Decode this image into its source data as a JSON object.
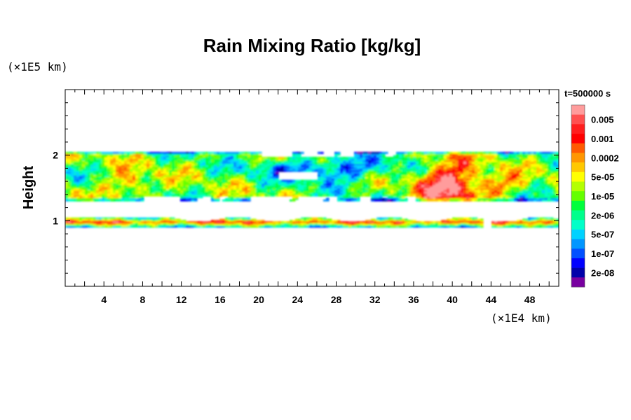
{
  "chart_data": {
    "type": "heatmap",
    "title": "Rain Mixing Ratio [kg/kg]",
    "ylabel": "Height",
    "y_unit": "(×1E5 km)",
    "x_unit": "(×1E4 km)",
    "time_label": "t=500000 s",
    "xlim": [
      0,
      51
    ],
    "ylim": [
      0,
      3
    ],
    "x_ticks": [
      4,
      8,
      12,
      16,
      20,
      24,
      28,
      32,
      36,
      40,
      44,
      48
    ],
    "y_ticks": [
      1,
      2
    ],
    "color_levels": [
      {
        "label": "",
        "color": "#ff9c9c"
      },
      {
        "label": "0.005",
        "color": "#ff5050"
      },
      {
        "label": "",
        "color": "#ff1e1e"
      },
      {
        "label": "0.001",
        "color": "#ff0000"
      },
      {
        "label": "",
        "color": "#ff5a00"
      },
      {
        "label": "0.0002",
        "color": "#ff9600"
      },
      {
        "label": "",
        "color": "#ffc800"
      },
      {
        "label": "5e-05",
        "color": "#ffff00"
      },
      {
        "label": "",
        "color": "#b4ff00"
      },
      {
        "label": "1e-05",
        "color": "#64ff00"
      },
      {
        "label": "",
        "color": "#00ff3c"
      },
      {
        "label": "2e-06",
        "color": "#00ff8c"
      },
      {
        "label": "",
        "color": "#00ffc8"
      },
      {
        "label": "5e-07",
        "color": "#00d2ff"
      },
      {
        "label": "",
        "color": "#0096ff"
      },
      {
        "label": "1e-07",
        "color": "#0050ff"
      },
      {
        "label": "",
        "color": "#0000ff"
      },
      {
        "label": "2e-08",
        "color": "#0000aa"
      },
      {
        "label": "",
        "color": "#7800a0"
      }
    ],
    "bands": [
      {
        "name": "upper-cloud-band",
        "y_bottom": 1.3,
        "y_top": 2.05
      },
      {
        "name": "lower-cloud-band",
        "y_bottom": 0.9,
        "y_top": 1.05
      }
    ]
  }
}
